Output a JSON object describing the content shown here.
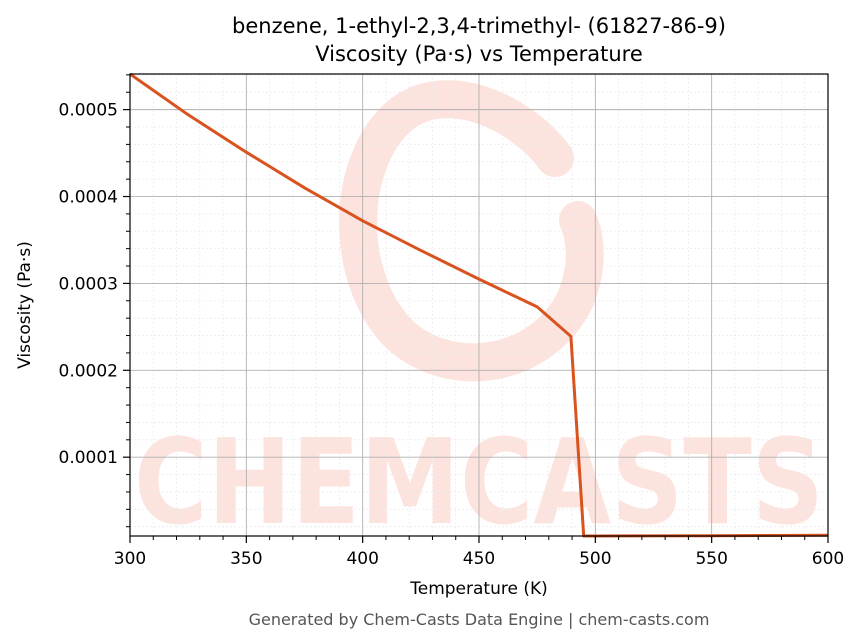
{
  "chart_data": {
    "type": "line",
    "title": "benzene, 1-ethyl-2,3,4-trimethyl- (61827-86-9)",
    "subtitle": "Viscosity (Pa·s) vs Temperature",
    "xlabel": "Temperature (K)",
    "ylabel": "Viscosity (Pa·s)",
    "xlim": [
      300,
      600
    ],
    "ylim": [
      9.3e-06,
      0.000541
    ],
    "x_ticks": [
      300,
      350,
      400,
      450,
      500,
      550,
      600
    ],
    "x_tick_labels": [
      "300",
      "350",
      "400",
      "450",
      "500",
      "550",
      "600"
    ],
    "y_ticks": [
      0.0001,
      0.0002,
      0.0003,
      0.0004,
      0.0005
    ],
    "y_tick_labels": [
      "0.0001",
      "0.0002",
      "0.0003",
      "0.0004",
      "0.0005"
    ],
    "grid": true,
    "legend": "none",
    "series": [
      {
        "color": "#d9531e",
        "x": [
          300,
          325,
          350,
          375,
          400,
          425,
          450,
          475,
          489.5,
          495,
          500,
          550,
          600
        ],
        "y": [
          0.000541,
          0.000494,
          0.000451,
          0.00041,
          0.000372,
          0.000338,
          0.000305,
          0.000273,
          0.000239,
          9.3e-06,
          9.3e-06,
          9.7e-06,
          1.02e-05
        ]
      }
    ]
  },
  "watermark": {
    "text": "CHEMCASTS",
    "color": "#fde3de"
  },
  "footer": "Generated by Chem-Casts Data Engine | chem-casts.com"
}
